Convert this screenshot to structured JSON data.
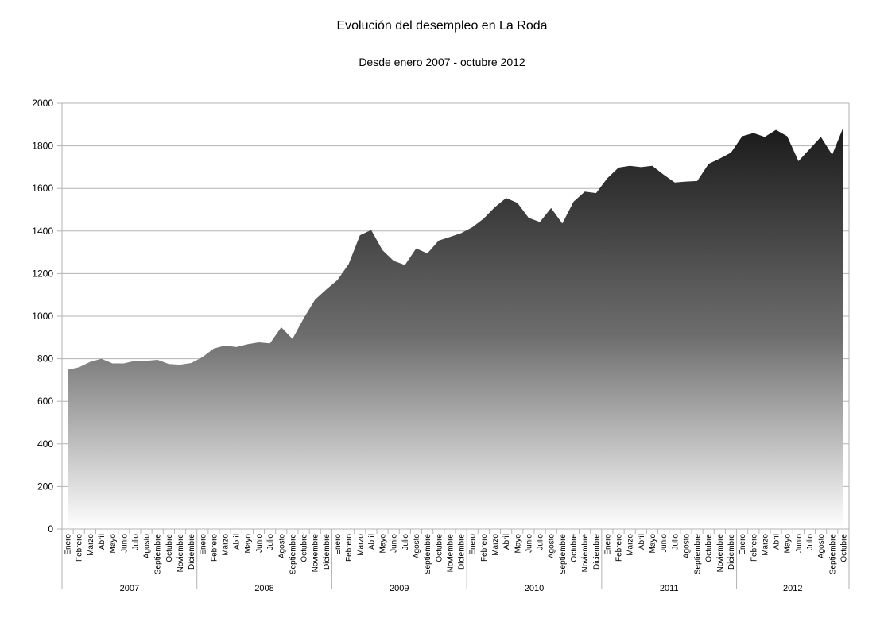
{
  "chart_data": {
    "type": "area",
    "title": "Evolución del desempleo en La Roda",
    "subtitle": "Desde enero 2007 - octubre 2012",
    "xlabel": "",
    "ylabel": "",
    "ylim": [
      0,
      2000
    ],
    "yticks": [
      0,
      200,
      400,
      600,
      800,
      1000,
      1200,
      1400,
      1600,
      1800,
      2000
    ],
    "grid": true,
    "legend": "none",
    "colors": {
      "top": "#111111",
      "mid": "#6e6e6e",
      "bottom": "#ffffff",
      "grid": "#b3b3b3",
      "axis": "#b3b3b3"
    },
    "year_groups": [
      {
        "label": "2007",
        "count": 12
      },
      {
        "label": "2008",
        "count": 12
      },
      {
        "label": "2009",
        "count": 12
      },
      {
        "label": "2010",
        "count": 12
      },
      {
        "label": "2011",
        "count": 12
      },
      {
        "label": "2012",
        "count": 10
      }
    ],
    "categories": [
      "Enero",
      "Febrero",
      "Marzo",
      "Abril",
      "Mayo",
      "Junio",
      "Julio",
      "Agosto",
      "Septiembre",
      "Octubre",
      "Noviembre",
      "Diciembre",
      "Enero",
      "Febrero",
      "Marzo",
      "Abril",
      "Mayo",
      "Junio",
      "Julio",
      "Agosto",
      "Septiembre",
      "Octubre",
      "Noviembre",
      "Diciembre",
      "Enero",
      "Febrero",
      "Marzo",
      "Abril",
      "Mayo",
      "Junio",
      "Julio",
      "Agosto",
      "Septiembre",
      "Octubre",
      "Noviembre",
      "Diciembre",
      "Enero",
      "Febrero",
      "Marzo",
      "Abril",
      "Mayo",
      "Junio",
      "Julio",
      "Agosto",
      "Septiembre",
      "Octubre",
      "Noviembre",
      "Diciembre",
      "Enero",
      "Febrero",
      "Marzo",
      "Abril",
      "Mayo",
      "Junio",
      "Julio",
      "Agosto",
      "Septiembre",
      "Octubre",
      "Noviembre",
      "Diciembre",
      "Enero",
      "Febrero",
      "Marzo",
      "Abril",
      "Mayo",
      "Junio",
      "Julio",
      "Agosto",
      "Septiembre",
      "Octubre"
    ],
    "values": [
      748,
      760,
      785,
      800,
      778,
      778,
      790,
      790,
      795,
      775,
      772,
      780,
      808,
      848,
      862,
      855,
      868,
      877,
      872,
      948,
      893,
      990,
      1077,
      1125,
      1170,
      1245,
      1380,
      1405,
      1310,
      1260,
      1240,
      1318,
      1295,
      1355,
      1372,
      1390,
      1418,
      1458,
      1512,
      1555,
      1532,
      1462,
      1442,
      1508,
      1435,
      1538,
      1585,
      1578,
      1648,
      1698,
      1706,
      1700,
      1706,
      1665,
      1628,
      1632,
      1635,
      1715,
      1740,
      1768,
      1845,
      1860,
      1842,
      1875,
      1845,
      1728,
      1785,
      1842,
      1758,
      1888
    ]
  }
}
